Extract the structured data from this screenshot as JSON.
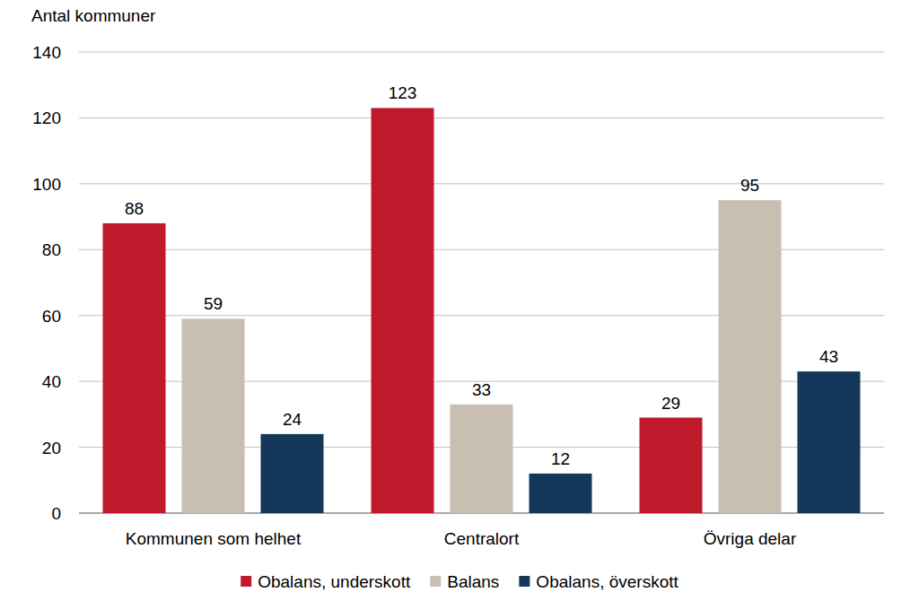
{
  "chart_data": {
    "type": "bar",
    "y_label": "Antal kommuner",
    "categories": [
      "Kommunen som helhet",
      "Centralort",
      "Övriga delar"
    ],
    "series": [
      {
        "name": "Obalans, underskott",
        "color": "#be1a2c",
        "values": [
          88,
          123,
          29
        ]
      },
      {
        "name": "Balans",
        "color": "#c8bfb1",
        "values": [
          59,
          33,
          95
        ]
      },
      {
        "name": "Obalans, överskott",
        "color": "#14375a",
        "values": [
          24,
          12,
          43
        ]
      }
    ],
    "ylim": [
      0,
      140
    ],
    "yticks": [
      0,
      20,
      40,
      60,
      80,
      100,
      120,
      140
    ],
    "grid": true,
    "legend": "bottom",
    "data_labels": true
  }
}
